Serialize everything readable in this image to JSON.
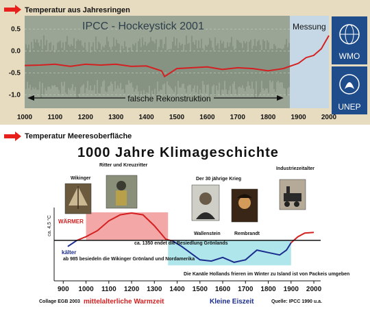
{
  "colors": {
    "top_panel_bg": "#e8dcc0",
    "plot_bg": "#9aa595",
    "measure_bg": "#c6d8e6",
    "logo_bg": "#1f4d8c",
    "red_line": "#d42020",
    "warm_fill": "#f3a7a7",
    "cold_fill": "#aee6ec",
    "blue_line": "#1a2c8c",
    "arrow_red": "#e8201c"
  },
  "top": {
    "header": "Temperatur aus Jahresringen",
    "plot_title": "IPCC - Hockeystick 2001",
    "measure_label": "Messung",
    "false_label": "falsche Rekonstruktion",
    "logos": [
      "WMO",
      "UNEP"
    ]
  },
  "bottom": {
    "header": "Temperatur Meeresoberfläche",
    "title": "1000 Jahre Klimageschichte",
    "warmer": "WÄRMER",
    "colder": "kälter",
    "yaxis": "ca. 4,5 °C",
    "labels": {
      "wikinger": "Wikinger",
      "ritter": "Ritter und Kreuzritter",
      "krieg": "Der 30 jährige Krieg",
      "industrie": "Industriezeitalter",
      "wallenstein": "Wallenstein",
      "rembrandt": "Rembrandt",
      "ann_985": "ab 985 besiedeln die Wikinger Grönland und Nordamerika",
      "ann_1350": "ca. 1350 endet die Besiedlung Grönlands",
      "ann_holland": "Die Kanäle Hollands frieren im Winter zu Island ist von Packeis umgeben",
      "collage": "Collage EGB 2003",
      "quelle": "Quelle: IPCC 1990 u.a.",
      "warmzeit": "mittelalterliche Warmzeit",
      "eiszeit": "Kleine Eiszeit"
    }
  },
  "chart_data": [
    {
      "type": "line",
      "x_ticks": [
        1000,
        1100,
        1200,
        1300,
        1400,
        1500,
        1600,
        1700,
        1800,
        1900,
        2000
      ],
      "y_ticks": [
        "0.5",
        "0.0",
        "-0.5",
        "-1.0"
      ],
      "xlim": [
        1000,
        2000
      ],
      "ylim": [
        -1.3,
        0.8
      ],
      "series": [
        {
          "x": [
            1000,
            1050,
            1100,
            1150,
            1200,
            1250,
            1300,
            1350,
            1400,
            1450,
            1460,
            1500,
            1550,
            1600,
            1650,
            1700,
            1750,
            1800,
            1850,
            1900,
            1925,
            1950,
            1975,
            2000
          ],
          "values": [
            -0.33,
            -0.32,
            -0.3,
            -0.35,
            -0.3,
            -0.32,
            -0.3,
            -0.35,
            -0.34,
            -0.45,
            -0.58,
            -0.4,
            -0.38,
            -0.36,
            -0.42,
            -0.38,
            -0.4,
            -0.45,
            -0.4,
            -0.28,
            -0.15,
            -0.1,
            0.05,
            0.35
          ]
        }
      ]
    },
    {
      "type": "line",
      "x_ticks": [
        900,
        1000,
        1100,
        1200,
        1300,
        1400,
        1500,
        1600,
        1700,
        1800,
        1900,
        2000
      ],
      "xlim": [
        860,
        2030
      ],
      "ylim": [
        -2.2,
        2.3
      ],
      "series": [
        {
          "x": [
            920,
            960,
            1000,
            1050,
            1100,
            1150,
            1200,
            1250,
            1300,
            1350,
            1380,
            1420,
            1500,
            1550,
            1600,
            1650,
            1700,
            1750,
            1800,
            1850,
            1880,
            1900,
            1930,
            1960,
            2000
          ],
          "values": [
            -0.5,
            0.0,
            0.3,
            0.8,
            1.6,
            2.1,
            2.25,
            2.1,
            1.2,
            0.1,
            -0.05,
            -0.5,
            -1.6,
            -1.7,
            -1.4,
            -1.8,
            -1.6,
            -0.8,
            -1.0,
            -1.2,
            -0.8,
            -0.2,
            0.3,
            0.6,
            0.65
          ]
        }
      ]
    }
  ]
}
